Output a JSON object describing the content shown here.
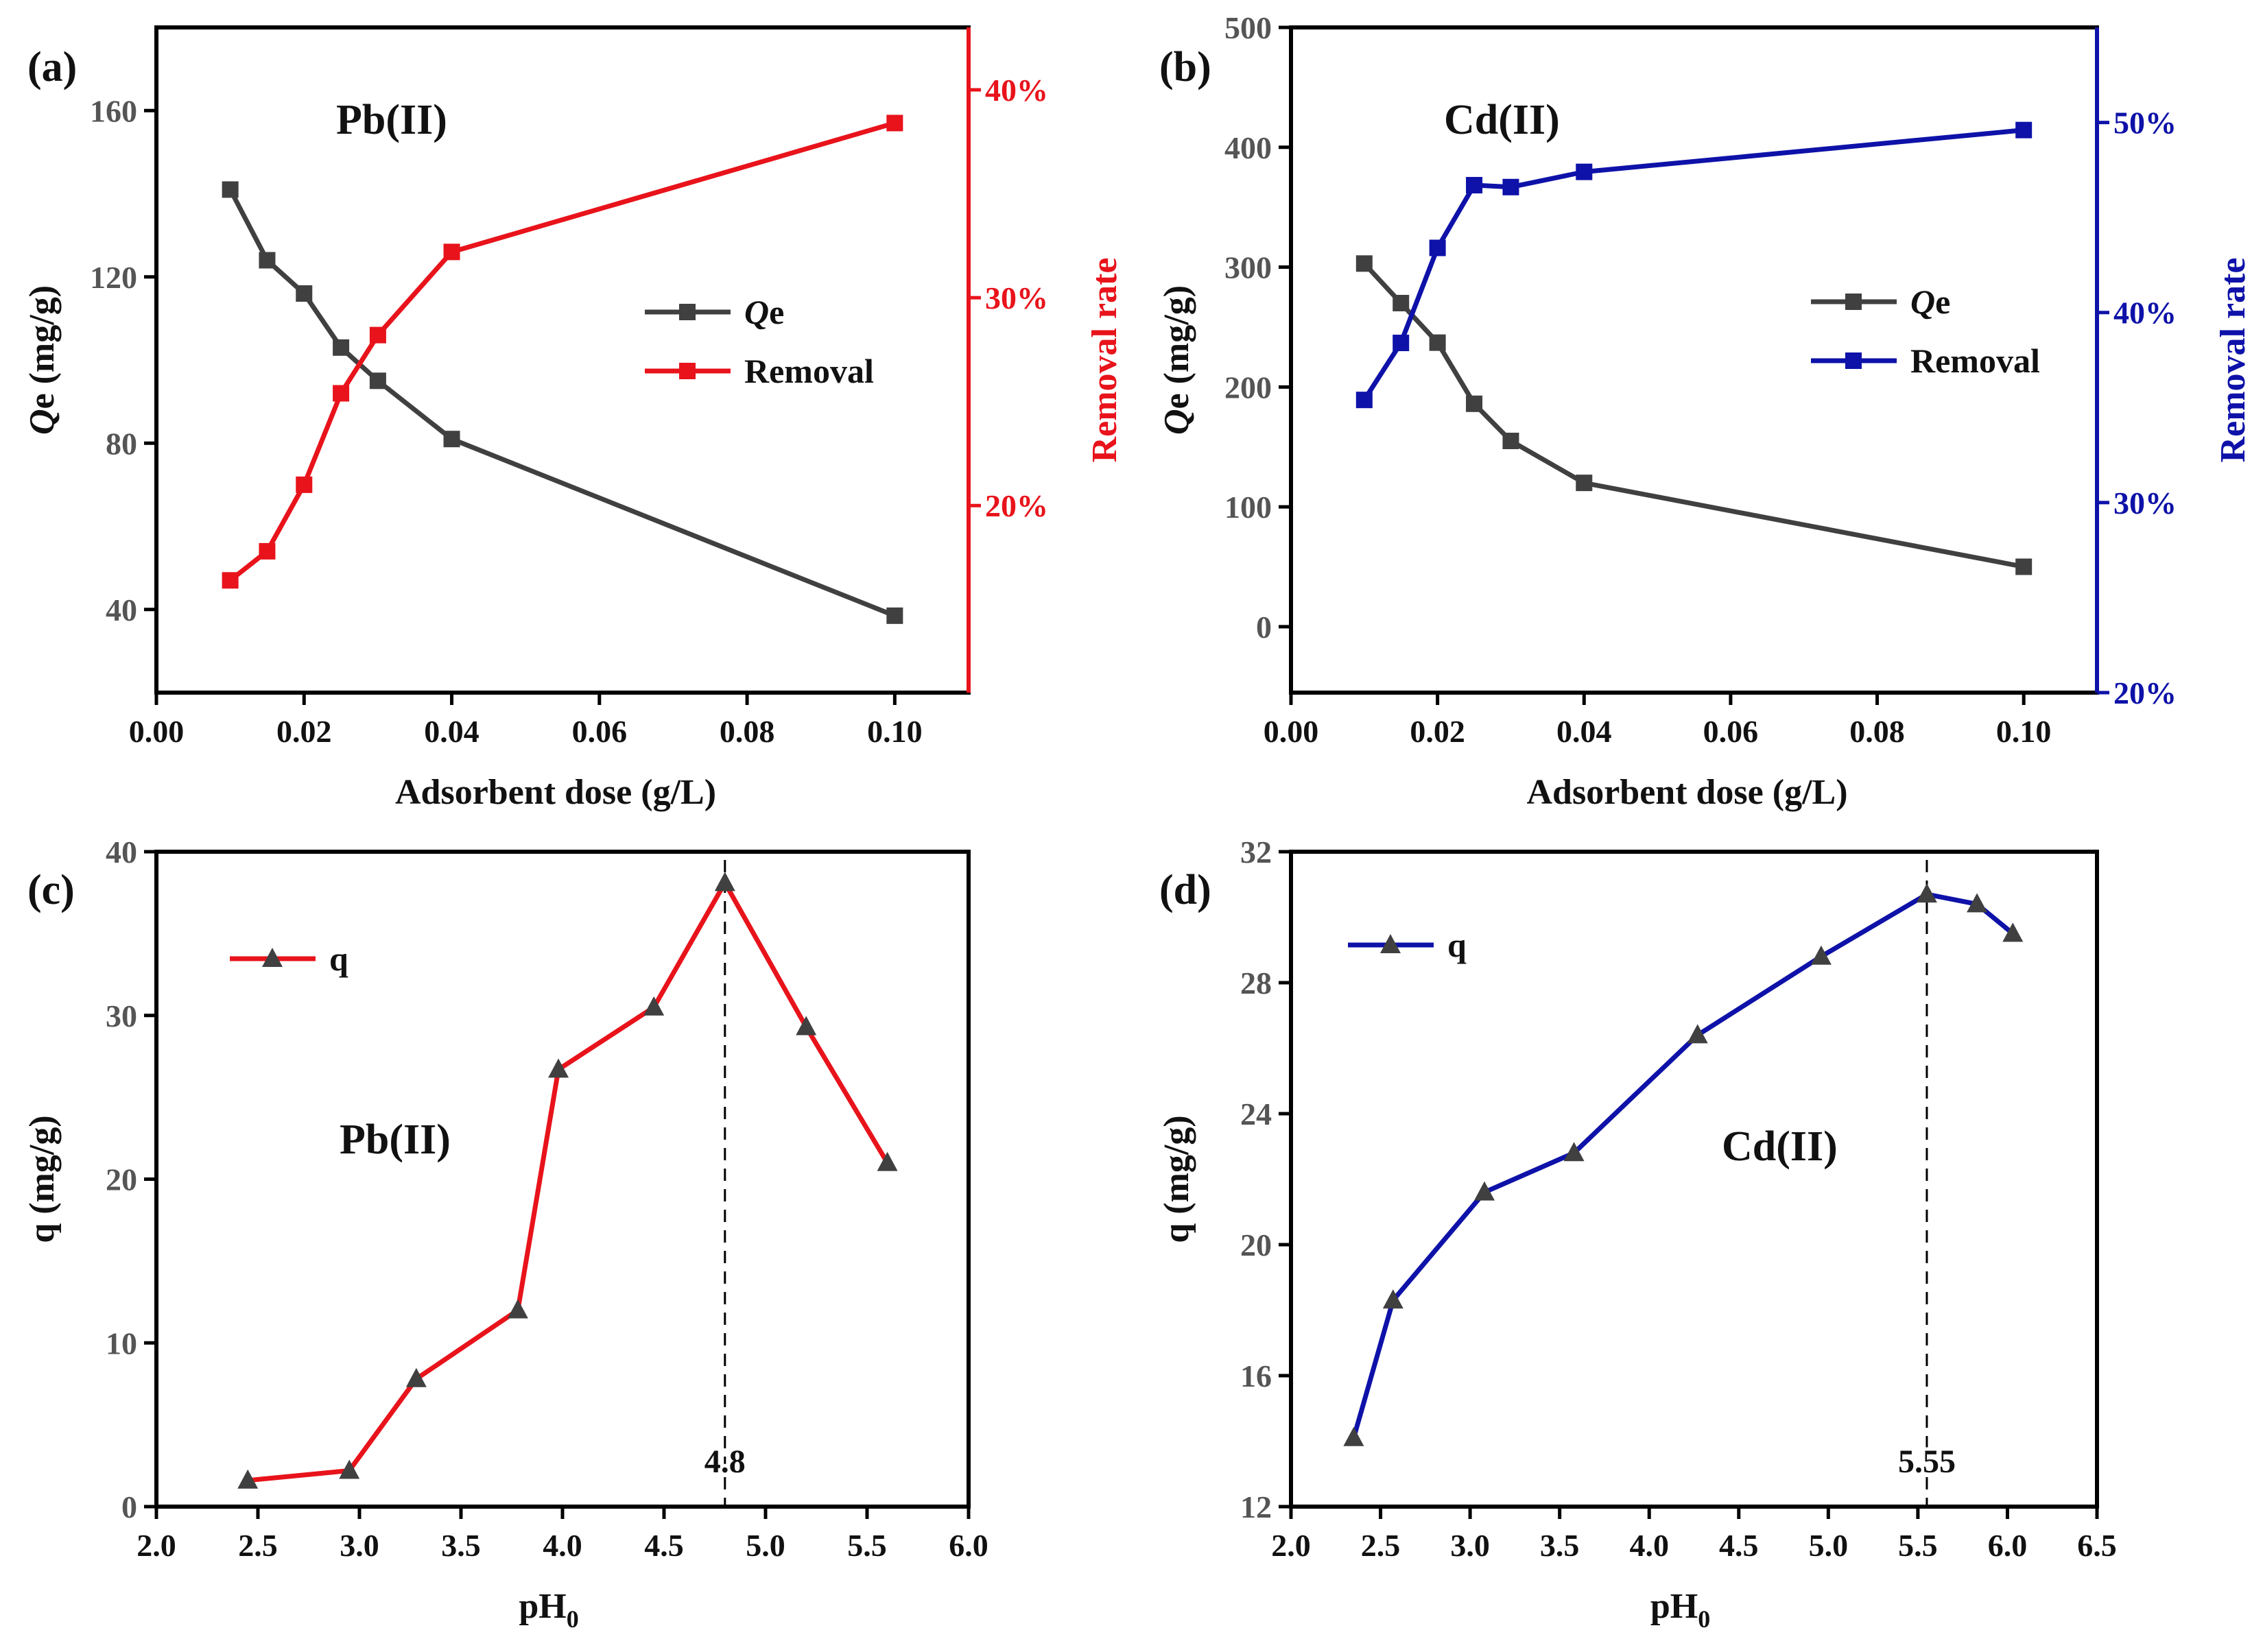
{
  "chart_data": [
    {
      "id": "a",
      "type": "line",
      "panel_label": "(a)",
      "metal_label": "Pb(II)",
      "xlabel": "Adsorbent dose (g/L)",
      "ylabel": "Qe (mg/g)",
      "ylabel_italic": "Q",
      "ylabel_rest": "e (mg/g)",
      "y2label": "Removal rate",
      "x": [
        0.01,
        0.015,
        0.02,
        0.025,
        0.03,
        0.04,
        0.1
      ],
      "xlim": [
        0.0,
        0.11
      ],
      "xticks": [
        0.0,
        0.02,
        0.04,
        0.06,
        0.08,
        0.1
      ],
      "xtick_labels": [
        "0.00",
        "0.02",
        "0.04",
        "0.06",
        "0.08",
        "0.10"
      ],
      "ylim": [
        20,
        180
      ],
      "yticks": [
        40,
        80,
        120,
        160
      ],
      "ytick_labels": [
        "40",
        "80",
        "120",
        "160"
      ],
      "y2lim": [
        0.11,
        0.43
      ],
      "y2ticks": [
        0.2,
        0.3,
        0.4
      ],
      "y2tick_labels": [
        "20%",
        "30%",
        "40%"
      ],
      "series": [
        {
          "name": "Qe",
          "legend_italic": "Q",
          "legend_rest": "e",
          "axis": "left",
          "color": "#404040",
          "marker": "square",
          "values": [
            141,
            124,
            116,
            103,
            95,
            81,
            38.5
          ]
        },
        {
          "name": "Removal",
          "legend_italic": "",
          "legend_rest": "Removal",
          "axis": "right",
          "color": "#e8131b",
          "marker": "square",
          "values": [
            0.164,
            0.178,
            0.21,
            0.254,
            0.282,
            0.322,
            0.384
          ]
        }
      ],
      "right_axis_color": "#e8131b"
    },
    {
      "id": "b",
      "type": "line",
      "panel_label": "(b)",
      "metal_label": "Cd(II)",
      "xlabel": "Adsorbent dose (g/L)",
      "ylabel": "Qe (mg/g)",
      "ylabel_italic": "Q",
      "ylabel_rest": "e (mg/g)",
      "y2label": "Removal rate",
      "x": [
        0.01,
        0.015,
        0.02,
        0.025,
        0.03,
        0.04,
        0.1
      ],
      "xlim": [
        0.0,
        0.11
      ],
      "xticks": [
        0.0,
        0.02,
        0.04,
        0.06,
        0.08,
        0.1
      ],
      "xtick_labels": [
        "0.00",
        "0.02",
        "0.04",
        "0.06",
        "0.08",
        "0.10"
      ],
      "ylim": [
        -55,
        500
      ],
      "yticks": [
        0,
        100,
        200,
        300,
        400,
        500
      ],
      "ytick_labels": [
        "0",
        "100",
        "200",
        "300",
        "400",
        "500"
      ],
      "y2lim": [
        0.2,
        0.55
      ],
      "y2ticks": [
        0.2,
        0.3,
        0.4,
        0.5
      ],
      "y2tick_labels": [
        "20%",
        "30%",
        "40%",
        "50%"
      ],
      "series": [
        {
          "name": "Qe",
          "legend_italic": "Q",
          "legend_rest": "e",
          "axis": "left",
          "color": "#404040",
          "marker": "square",
          "values": [
            303,
            270,
            237,
            186,
            155,
            120,
            50
          ]
        },
        {
          "name": "Removal",
          "legend_italic": "",
          "legend_rest": "Removal",
          "axis": "right",
          "color": "#0e12a8",
          "marker": "square",
          "values": [
            0.354,
            0.384,
            0.434,
            0.467,
            0.466,
            0.474,
            0.496
          ]
        }
      ],
      "right_axis_color": "#0e12a8"
    },
    {
      "id": "c",
      "type": "line",
      "panel_label": "(c)",
      "metal_label": "Pb(II)",
      "xlabel": "pH",
      "xlabel_sub": "0",
      "ylabel": "q (mg/g)",
      "x": [
        2.45,
        2.95,
        3.28,
        3.78,
        3.98,
        4.45,
        4.8,
        5.2,
        5.6
      ],
      "xlim": [
        2.0,
        6.0
      ],
      "xticks": [
        2.0,
        2.5,
        3.0,
        3.5,
        4.0,
        4.5,
        5.0,
        5.5,
        6.0
      ],
      "xtick_labels": [
        "2.0",
        "2.5",
        "3.0",
        "3.5",
        "4.0",
        "4.5",
        "5.0",
        "5.5",
        "6.0"
      ],
      "ylim": [
        0,
        40
      ],
      "yticks": [
        0,
        10,
        20,
        30,
        40
      ],
      "ytick_labels": [
        "0",
        "10",
        "20",
        "30",
        "40"
      ],
      "series": [
        {
          "name": "q",
          "color": "#e8131b",
          "marker": "triangle",
          "values": [
            1.6,
            2.2,
            7.8,
            12.0,
            26.7,
            30.5,
            38.1,
            29.3,
            21.0
          ]
        }
      ],
      "vline": {
        "x": 4.8,
        "label": "4.8"
      }
    },
    {
      "id": "d",
      "type": "line",
      "panel_label": "(d)",
      "metal_label": "Cd(II)",
      "xlabel": "pH",
      "xlabel_sub": "0",
      "ylabel": "q (mg/g)",
      "x": [
        2.35,
        2.57,
        3.08,
        3.58,
        4.27,
        4.96,
        5.55,
        5.83,
        6.03
      ],
      "xlim": [
        2.0,
        6.5
      ],
      "xticks": [
        2.0,
        2.5,
        3.0,
        3.5,
        4.0,
        4.5,
        5.0,
        5.5,
        6.0,
        6.5
      ],
      "xtick_labels": [
        "2.0",
        "2.5",
        "3.0",
        "3.5",
        "4.0",
        "4.5",
        "5.0",
        "5.5",
        "6.0",
        "6.5"
      ],
      "ylim": [
        12,
        32
      ],
      "yticks": [
        12,
        16,
        20,
        24,
        28,
        32
      ],
      "ytick_labels": [
        "12",
        "16",
        "20",
        "24",
        "28",
        "32"
      ],
      "series": [
        {
          "name": "q",
          "color": "#0e12a8",
          "marker": "triangle",
          "values": [
            14.1,
            18.3,
            21.6,
            22.8,
            26.4,
            28.8,
            30.7,
            30.4,
            29.5
          ]
        }
      ],
      "vline": {
        "x": 5.55,
        "label": "5.55"
      }
    }
  ]
}
